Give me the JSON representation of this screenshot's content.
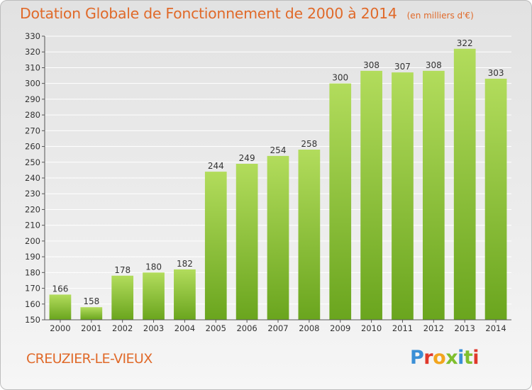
{
  "title": "Dotation Globale de Fonctionnement de 2000 à 2014",
  "unit_note": "(en milliers d'€)",
  "commune": "CREUZIER-LE-VIEUX",
  "logo": {
    "letters": [
      "P",
      "r",
      "o",
      "x",
      "i",
      "t",
      "i"
    ],
    "colors": [
      "#3a8fd6",
      "#e0382b",
      "#f2a51e",
      "#7fbf2e",
      "#3a8fd6",
      "#7fbf2e",
      "#e0382b"
    ]
  },
  "colors": {
    "bar_light": "#b2dc5c",
    "bar_dark": "#6aa51e",
    "accent": "#e06a2a",
    "label": "#333333"
  },
  "chart_data": {
    "type": "bar",
    "title": "Dotation Globale de Fonctionnement de 2000 à 2014",
    "categories": [
      "2000",
      "2001",
      "2002",
      "2003",
      "2004",
      "2005",
      "2006",
      "2007",
      "2008",
      "2009",
      "2010",
      "2011",
      "2012",
      "2013",
      "2014"
    ],
    "values": [
      166,
      158,
      178,
      180,
      182,
      244,
      249,
      254,
      258,
      300,
      308,
      307,
      308,
      322,
      303
    ],
    "ylim": [
      150,
      330
    ],
    "yticks": [
      150,
      160,
      170,
      180,
      190,
      200,
      210,
      220,
      230,
      240,
      250,
      260,
      270,
      280,
      290,
      300,
      310,
      320,
      330
    ],
    "grid": true,
    "xlabel": "",
    "ylabel": ""
  }
}
